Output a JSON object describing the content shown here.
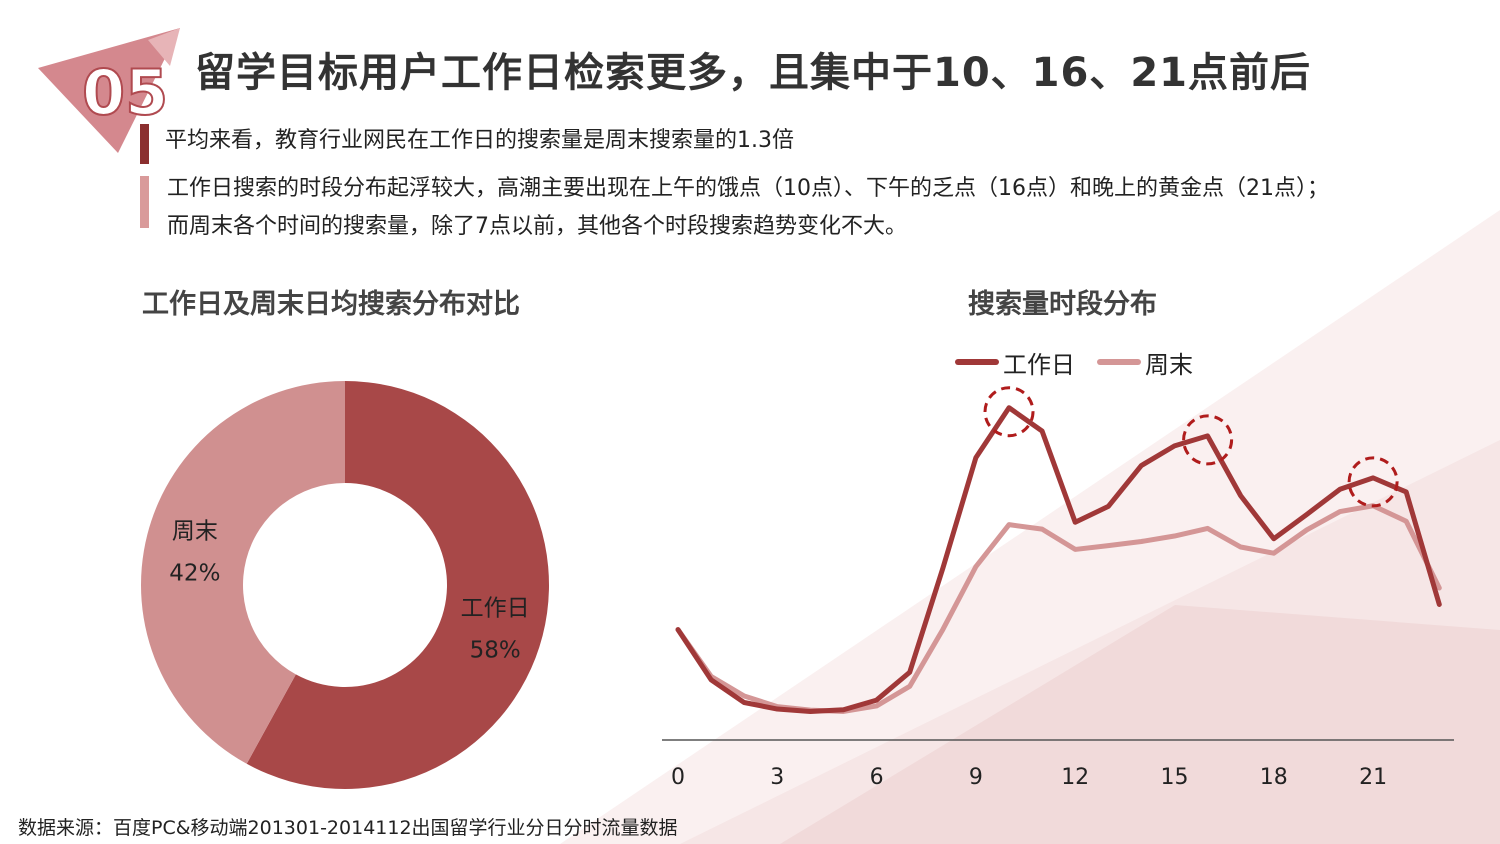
{
  "badge": {
    "number": "05"
  },
  "title": "留学目标用户工作日检索更多，且集中于10、16、21点前后",
  "bullets": {
    "b1": "平均来看，教育行业网民在工作日的搜索量是周末搜索量的1.3倍",
    "b2_line1": "工作日搜索的时段分布起浮较大，高潮主要出现在上午的饿点（10点）、下午的乏点（16点）和晚上的黄金点（21点）；",
    "b2_line2": "而周末各个时间的搜索量，除了7点以前，其他各个时段搜索趋势变化不大。"
  },
  "source": "数据来源：百度PC&移动端201301-2014112出国留学行业分日分时流量数据",
  "colors": {
    "workday": "#a84848",
    "weekend": "#d09090",
    "title_red": "#b04a50",
    "bg_pink": "#f6e8e8"
  },
  "chart_data": [
    {
      "type": "pie",
      "title": "工作日及周末日均搜索分布对比",
      "donut": true,
      "slices": [
        {
          "label": "工作日",
          "value": 58,
          "pct_label": "58%",
          "color": "#a84848"
        },
        {
          "label": "周末",
          "value": 42,
          "pct_label": "42%",
          "color": "#d09090"
        }
      ]
    },
    {
      "type": "line",
      "title": "搜索量时段分布",
      "x": [
        0,
        1,
        2,
        3,
        4,
        5,
        6,
        7,
        8,
        9,
        10,
        11,
        12,
        13,
        14,
        15,
        16,
        17,
        18,
        19,
        20,
        21,
        22,
        23
      ],
      "xticks": [
        0,
        3,
        6,
        9,
        12,
        15,
        18,
        21
      ],
      "xtick_labels": [
        "0",
        "3",
        "6",
        "9",
        "12",
        "15",
        "18",
        "21"
      ],
      "ylim": [
        0,
        100
      ],
      "y_axis_visible": false,
      "legend_position": "top",
      "series": [
        {
          "name": "工作日",
          "color": "#a03838",
          "values": [
            32.1,
            17.5,
            10.9,
            9.0,
            8.3,
            8.8,
            11.6,
            19.7,
            49.9,
            82.1,
            96.6,
            89.8,
            63.3,
            67.9,
            79.8,
            85.5,
            88.4,
            71.0,
            58.5,
            65.6,
            72.9,
            76.2,
            72.1,
            39.4
          ]
        },
        {
          "name": "周末",
          "color": "#d49696",
          "values": [
            32.1,
            18.5,
            12.8,
            9.7,
            8.7,
            8.3,
            9.9,
            15.6,
            32.1,
            50.4,
            62.6,
            61.3,
            55.4,
            56.5,
            57.7,
            59.3,
            61.5,
            56.1,
            54.3,
            61.1,
            66.4,
            68.1,
            63.6,
            44.2
          ]
        }
      ],
      "highlight_x": [
        10,
        16,
        21
      ]
    }
  ]
}
